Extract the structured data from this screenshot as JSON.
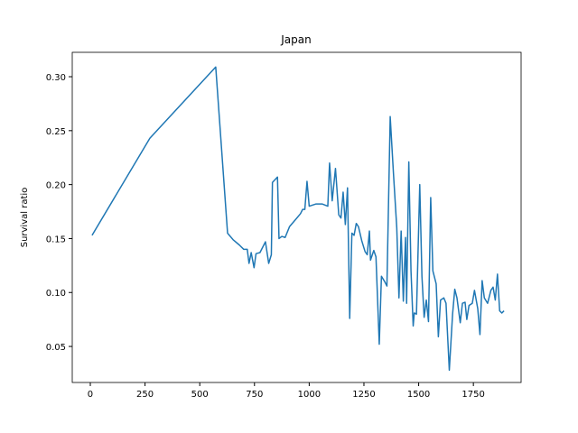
{
  "chart_data": {
    "type": "line",
    "title": "Japan",
    "ylabel": "Survival ratio",
    "xlim": [
      -82.5,
      1968
    ],
    "ylim": [
      0.0166,
      0.3226
    ],
    "xticks": [
      0,
      250,
      500,
      750,
      1000,
      1250,
      1500,
      1750
    ],
    "yticks": [
      0.05,
      {
        "value": 0.1,
        "label": "0.10"
      },
      0.15,
      {
        "value": 0.2,
        "label": "0.20"
      },
      0.25,
      {
        "value": 0.3,
        "label": "0.30"
      }
    ],
    "series": [
      {
        "color": "#1f77b4",
        "x": [
          8,
          272,
          573,
          627,
          652,
          681,
          701,
          717,
          725,
          735,
          748,
          757,
          775,
          800,
          815,
          827,
          832,
          855,
          862,
          875,
          890,
          910,
          935,
          960,
          970,
          980,
          990,
          1000,
          1030,
          1060,
          1085,
          1093,
          1105,
          1120,
          1135,
          1145,
          1155,
          1165,
          1175,
          1185,
          1195,
          1205,
          1215,
          1225,
          1240,
          1255,
          1265,
          1275,
          1280,
          1295,
          1305,
          1320,
          1330,
          1345,
          1355,
          1370,
          1385,
          1400,
          1410,
          1420,
          1430,
          1440,
          1445,
          1455,
          1465,
          1475,
          1480,
          1490,
          1505,
          1515,
          1525,
          1535,
          1545,
          1555,
          1565,
          1580,
          1590,
          1600,
          1615,
          1625,
          1640,
          1655,
          1665,
          1675,
          1690,
          1700,
          1712,
          1720,
          1730,
          1745,
          1755,
          1770,
          1780,
          1790,
          1800,
          1815,
          1830,
          1840,
          1850,
          1860,
          1870,
          1880,
          1890
        ],
        "values": [
          0.153,
          0.243,
          0.309,
          0.155,
          0.149,
          0.144,
          0.14,
          0.14,
          0.127,
          0.137,
          0.123,
          0.136,
          0.137,
          0.147,
          0.127,
          0.135,
          0.202,
          0.207,
          0.15,
          0.152,
          0.151,
          0.161,
          0.167,
          0.173,
          0.177,
          0.177,
          0.203,
          0.18,
          0.182,
          0.182,
          0.18,
          0.22,
          0.185,
          0.215,
          0.172,
          0.169,
          0.193,
          0.163,
          0.197,
          0.076,
          0.155,
          0.153,
          0.164,
          0.161,
          0.148,
          0.138,
          0.135,
          0.157,
          0.13,
          0.139,
          0.133,
          0.052,
          0.115,
          0.11,
          0.106,
          0.263,
          0.21,
          0.16,
          0.095,
          0.157,
          0.092,
          0.151,
          0.09,
          0.221,
          0.12,
          0.069,
          0.081,
          0.08,
          0.2,
          0.115,
          0.077,
          0.093,
          0.073,
          0.188,
          0.12,
          0.108,
          0.059,
          0.093,
          0.095,
          0.09,
          0.028,
          0.08,
          0.103,
          0.095,
          0.072,
          0.09,
          0.091,
          0.075,
          0.088,
          0.09,
          0.102,
          0.085,
          0.061,
          0.111,
          0.095,
          0.09,
          0.102,
          0.105,
          0.093,
          0.117,
          0.083,
          0.081,
          0.083
        ]
      }
    ]
  }
}
